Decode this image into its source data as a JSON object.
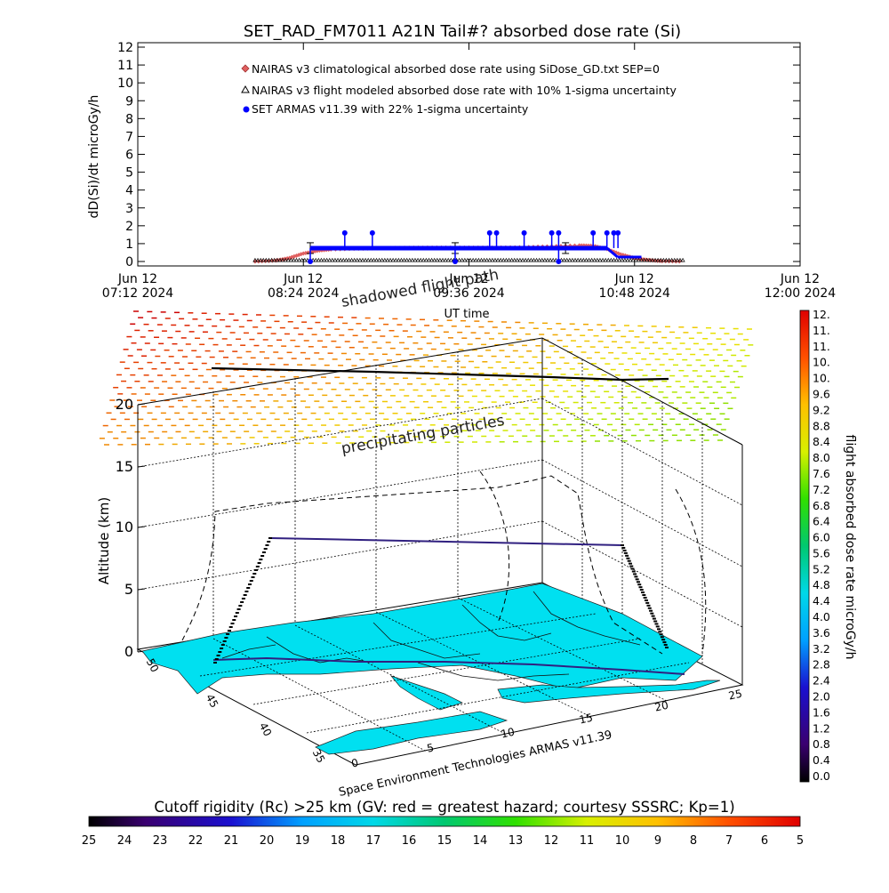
{
  "page_title": "SET_RAD_FM7011  A21N Tail#? absorbed dose rate (Si)",
  "chart_data": [
    {
      "type": "line",
      "title": "SET_RAD_FM7011  A21N Tail#? absorbed dose rate (Si)",
      "ylabel": "dD(Si)/dt microGy/h",
      "xlabel": "UT time",
      "ylim": [
        0,
        12
      ],
      "y_ticks": [
        "0",
        "1",
        "2",
        "3",
        "4",
        "5",
        "6",
        "7",
        "8",
        "9",
        "10",
        "11",
        "12"
      ],
      "x_ticks": [
        {
          "top": "Jun 12",
          "bottom": "07:12 2024"
        },
        {
          "top": "Jun 12",
          "bottom": "08:24 2024"
        },
        {
          "top": "Jun 12",
          "bottom": "09:36 2024"
        },
        {
          "top": "Jun 12",
          "bottom": "10:48 2024"
        },
        {
          "top": "Jun 12",
          "bottom": "12:00 2024"
        }
      ],
      "x_tick_hours": [
        7.2,
        8.4,
        9.6,
        10.8,
        12.0
      ],
      "xlim_hours": [
        7.2,
        12.0
      ],
      "legend_placement": "top-center",
      "series": [
        {
          "name": "NAIRAS v3 climatological absorbed dose rate using SiDose_GD.txt SEP=0",
          "color": "#e06060",
          "marker": "diamond",
          "x": [
            8.05,
            8.2,
            8.3,
            8.4,
            8.5,
            8.6,
            8.8,
            9.0,
            9.2,
            9.4,
            9.6,
            9.8,
            10.0,
            10.2,
            10.4,
            10.5,
            10.6,
            10.7,
            10.8,
            10.9,
            11.0,
            11.15
          ],
          "values": [
            0.0,
            0.05,
            0.2,
            0.45,
            0.6,
            0.68,
            0.72,
            0.75,
            0.77,
            0.78,
            0.78,
            0.78,
            0.8,
            0.85,
            0.9,
            0.88,
            0.7,
            0.4,
            0.2,
            0.08,
            0.02,
            0.0
          ]
        },
        {
          "name": "NAIRAS v3 flight modeled absorbed dose rate with 10% 1-sigma uncertainty",
          "color": "#000000",
          "marker": "triangle",
          "x": [
            8.05,
            8.5,
            9.0,
            9.5,
            10.0,
            10.5,
            11.15
          ],
          "values": [
            0.02,
            0.02,
            0.02,
            0.02,
            0.02,
            0.02,
            0.02
          ]
        },
        {
          "name": "SET ARMAS v11.39 with 22% 1-sigma uncertainty",
          "color": "#0000ff",
          "marker": "circle",
          "x": [
            8.45,
            8.5,
            8.7,
            8.9,
            9.1,
            9.3,
            9.5,
            9.7,
            9.9,
            10.1,
            10.3,
            10.5,
            10.6
          ],
          "values": [
            0.75,
            0.75,
            0.75,
            0.75,
            0.75,
            0.75,
            0.75,
            0.75,
            0.75,
            0.75,
            0.75,
            0.75,
            0.75
          ],
          "spikes_x": [
            8.7,
            8.9,
            9.75,
            9.8,
            10.0,
            10.2,
            10.25,
            10.5,
            10.6,
            10.65,
            10.68
          ],
          "spike_value": 1.6,
          "dips_x": [
            8.45,
            9.5,
            10.25
          ],
          "dip_value": 0.0
        }
      ]
    },
    {
      "type": "3d-trajectory",
      "zlabel": "Altitude (km)",
      "z_ticks": [
        "0",
        "5",
        "10",
        "15",
        "20"
      ],
      "lat_ticks": [
        "50",
        "45",
        "40",
        "35"
      ],
      "lon_ticks": [
        "0",
        "5",
        "10",
        "15",
        "20",
        "25"
      ],
      "annotations": [
        "shadowed flight path",
        "precipitating particles"
      ],
      "footer": "Space Environment Technologies ARMAS v11.39",
      "flight_altitude_km": 10.3
    }
  ],
  "dose_colorbar": {
    "label": "flight absorbed dose rate microGy/h",
    "ticks": [
      "12.",
      "11.",
      "11.",
      "10.",
      "10.",
      "9.6",
      "9.2",
      "8.8",
      "8.4",
      "8.0",
      "7.6",
      "7.2",
      "6.8",
      "6.4",
      "6.0",
      "5.6",
      "5.2",
      "4.8",
      "4.4",
      "4.0",
      "3.6",
      "3.2",
      "2.8",
      "2.4",
      "2.0",
      "1.6",
      "1.2",
      "0.8",
      "0.4",
      "0.0"
    ]
  },
  "rigidity_colorbar": {
    "title": "Cutoff rigidity (Rc) >25 km (GV: red = greatest hazard; courtesy SSSRC; Kp=1)",
    "ticks": [
      "25",
      "24",
      "23",
      "22",
      "21",
      "20",
      "19",
      "18",
      "17",
      "16",
      "15",
      "14",
      "13",
      "12",
      "11",
      "10",
      "9",
      "8",
      "7",
      "6",
      "5"
    ]
  }
}
